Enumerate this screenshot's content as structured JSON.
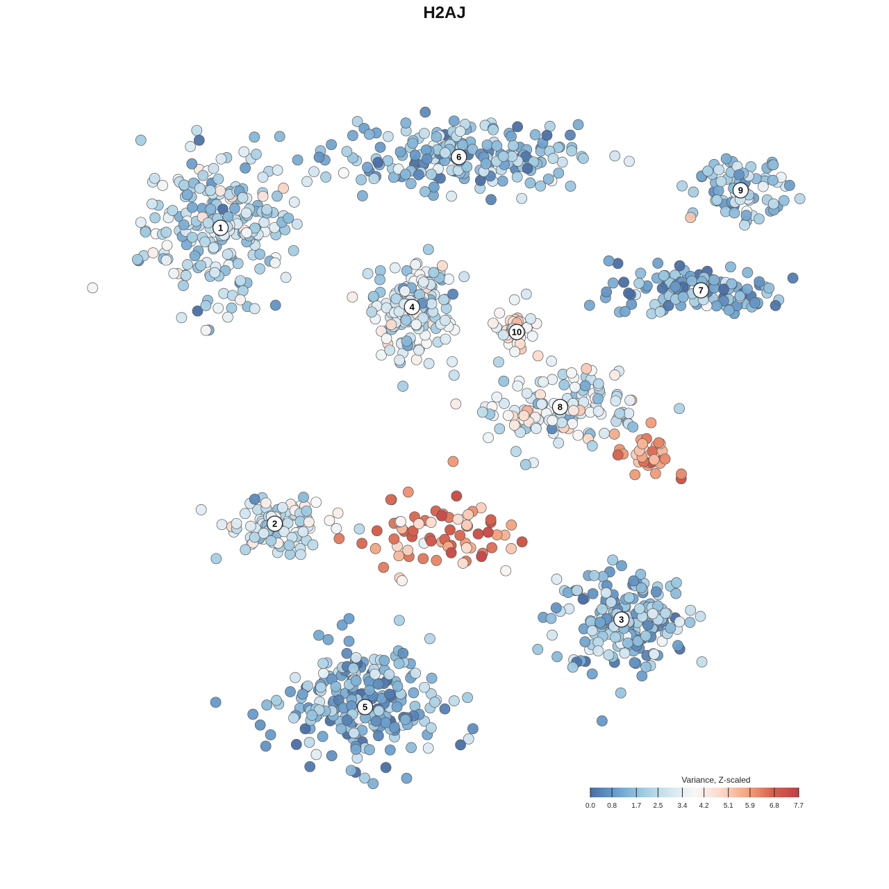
{
  "chart_data": {
    "type": "scatter",
    "title": "H2AJ",
    "legend": {
      "title": "Variance, Z-scaled",
      "placement": "bottom-right",
      "ticks": [
        "0.0",
        "0.8",
        "1.7",
        "2.5",
        "3.4",
        "4.2",
        "5.1",
        "5.9",
        "6.8",
        "7.7"
      ],
      "range": [
        0.0,
        7.7
      ],
      "colors": [
        "#4a6fa5",
        "#6a9fcd",
        "#9ecae1",
        "#d1e5f0",
        "#f7f7f7",
        "#fbd9c9",
        "#f4a582",
        "#d6604d",
        "#c0404a"
      ]
    },
    "clusters": [
      {
        "label": "1",
        "cx": -0.62,
        "cy": 0.52,
        "mean": 2.4
      },
      {
        "label": "2",
        "cx": -0.47,
        "cy": -0.19,
        "mean": 2.9
      },
      {
        "label": "3",
        "cx": 0.49,
        "cy": -0.42,
        "mean": 1.6
      },
      {
        "label": "4",
        "cx": -0.09,
        "cy": 0.33,
        "mean": 2.8
      },
      {
        "label": "5",
        "cx": -0.22,
        "cy": -0.63,
        "mean": 1.3
      },
      {
        "label": "6",
        "cx": 0.04,
        "cy": 0.69,
        "mean": 1.5
      },
      {
        "label": "7",
        "cx": 0.71,
        "cy": 0.37,
        "mean": 1.3
      },
      {
        "label": "8",
        "cx": 0.32,
        "cy": 0.09,
        "mean": 3.2
      },
      {
        "label": "9",
        "cx": 0.82,
        "cy": 0.61,
        "mean": 2.0
      },
      {
        "label": "10",
        "cx": 0.2,
        "cy": 0.27,
        "mean": 3.9
      }
    ]
  }
}
